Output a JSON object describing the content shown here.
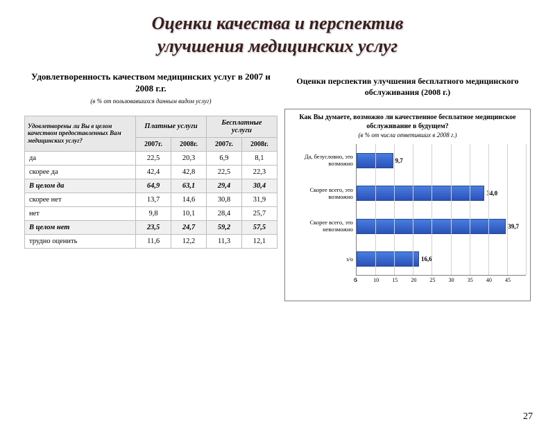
{
  "title_lines": [
    "Оценки качества и перспектив",
    "улучшения медицинских услуг"
  ],
  "left": {
    "heading": "Удовлетворенность качеством медицинских услуг в 2007 и 2008 г.г.",
    "note": "(в % от пользовавшихся данным видом услуг)"
  },
  "right": {
    "heading": "Оценки перспектив улучшения бесплатного медицинского обслуживания (2008 г.)"
  },
  "table": {
    "stub_label": "Удовлетворены ли Вы в целом качеством предоставленных Вам медицинских услуг?",
    "group_headers": [
      "Платные услуги",
      "Бесплатные услуги"
    ],
    "year_headers": [
      "2007г.",
      "2008г.",
      "2007г.",
      "2008г."
    ],
    "rows": [
      {
        "label": "да",
        "values": [
          "22,5",
          "20,3",
          "6,9",
          "8,1"
        ],
        "bold": false,
        "stripe": false
      },
      {
        "label": "скорее да",
        "values": [
          "42,4",
          "42,8",
          "22,5",
          "22,3"
        ],
        "bold": false,
        "stripe": false
      },
      {
        "label": "В целом да",
        "values": [
          "64,9",
          "63,1",
          "29,4",
          "30,4"
        ],
        "bold": true,
        "stripe": true
      },
      {
        "label": "скорее нет",
        "values": [
          "13,7",
          "14,6",
          "30,8",
          "31,9"
        ],
        "bold": false,
        "stripe": false
      },
      {
        "label": "нет",
        "values": [
          "9,8",
          "10,1",
          "28,4",
          "25,7"
        ],
        "bold": false,
        "stripe": false
      },
      {
        "label": "В целом нет",
        "values": [
          "23,5",
          "24,7",
          "59,2",
          "57,5"
        ],
        "bold": true,
        "stripe": true
      },
      {
        "label": "трудно оценить",
        "values": [
          "11,6",
          "12,2",
          "11,3",
          "12,1"
        ],
        "bold": false,
        "stripe": false
      }
    ]
  },
  "chart": {
    "title": "Как Вы думаете, возможно ли качественное бесплатное медицинское обслуживание в будущем?",
    "subtitle": "(в % от числа ответивших в 2008 г.)",
    "x_max": 45,
    "x_ticks": [
      0,
      5,
      10,
      15,
      20,
      25,
      30,
      35,
      40,
      45
    ],
    "bar_color": "#3a66cc",
    "grid_color": "#d0d0d0",
    "categories": [
      {
        "label": "Да, безусловно, это возможно",
        "value": 9.7,
        "display": "9,7"
      },
      {
        "label": "Скорее всего, это возможно",
        "value": 34.0,
        "display": "34,0"
      },
      {
        "label": "Скорее всего, это невозможно",
        "value": 39.7,
        "display": "39,7"
      },
      {
        "label": "з/о",
        "value": 16.6,
        "display": "16,6"
      }
    ]
  },
  "page_number": "27"
}
